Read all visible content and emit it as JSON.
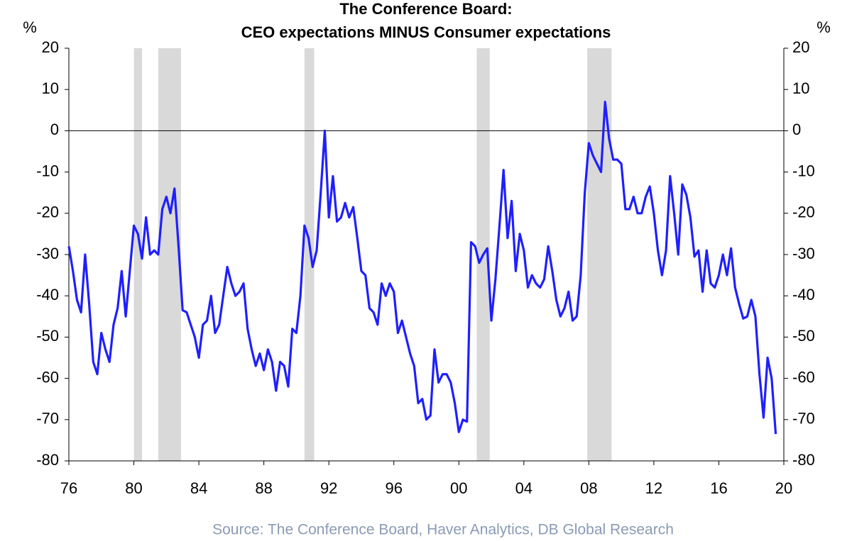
{
  "chart_data": {
    "type": "line",
    "title": "The Conference Board:",
    "subtitle": "CEO expectations MINUS Consumer expectations",
    "y_label": "%",
    "y2_label": "%",
    "source": "Source: The Conference Board, Haver Analytics, DB Global Research",
    "color": "#1f1fff",
    "shade_color": "#d9d9d9",
    "shaded_periods": [
      [
        1980.0,
        1980.5
      ],
      [
        1981.5,
        1982.9
      ],
      [
        1990.5,
        1991.1
      ],
      [
        2001.1,
        2001.9
      ],
      [
        2007.9,
        2009.4
      ]
    ],
    "x": [
      1976,
      1976.25,
      1976.5,
      1976.75,
      1977,
      1977.25,
      1977.5,
      1977.75,
      1978,
      1978.25,
      1978.5,
      1978.75,
      1979,
      1979.25,
      1979.5,
      1979.75,
      1980,
      1980.25,
      1980.5,
      1980.75,
      1981,
      1981.25,
      1981.5,
      1981.75,
      1982,
      1982.25,
      1982.5,
      1982.75,
      1983,
      1983.25,
      1983.5,
      1983.75,
      1984,
      1984.25,
      1984.5,
      1984.75,
      1985,
      1985.25,
      1985.5,
      1985.75,
      1986,
      1986.25,
      1986.5,
      1986.75,
      1987,
      1987.25,
      1987.5,
      1987.75,
      1988,
      1988.25,
      1988.5,
      1988.75,
      1989,
      1989.25,
      1989.5,
      1989.75,
      1990,
      1990.25,
      1990.5,
      1990.75,
      1991,
      1991.25,
      1991.5,
      1991.75,
      1992,
      1992.25,
      1992.5,
      1992.75,
      1993,
      1993.25,
      1993.5,
      1993.75,
      1994,
      1994.25,
      1994.5,
      1994.75,
      1995,
      1995.25,
      1995.5,
      1995.75,
      1996,
      1996.25,
      1996.5,
      1996.75,
      1997,
      1997.25,
      1997.5,
      1997.75,
      1998,
      1998.25,
      1998.5,
      1998.75,
      1999,
      1999.25,
      1999.5,
      1999.75,
      2000,
      2000.25,
      2000.5,
      2000.75,
      2001,
      2001.25,
      2001.5,
      2001.75,
      2002,
      2002.25,
      2002.5,
      2002.75,
      2003,
      2003.25,
      2003.5,
      2003.75,
      2004,
      2004.25,
      2004.5,
      2004.75,
      2005,
      2005.25,
      2005.5,
      2005.75,
      2006,
      2006.25,
      2006.5,
      2006.75,
      2007,
      2007.25,
      2007.5,
      2007.75,
      2008,
      2008.25,
      2008.5,
      2008.75,
      2009,
      2009.25,
      2009.5,
      2009.75,
      2010,
      2010.25,
      2010.5,
      2010.75,
      2011,
      2011.25,
      2011.5,
      2011.75,
      2012,
      2012.25,
      2012.5,
      2012.75,
      2013,
      2013.25,
      2013.5,
      2013.75,
      2014,
      2014.25,
      2014.5,
      2014.75,
      2015,
      2015.25,
      2015.5,
      2015.75,
      2016,
      2016.25,
      2016.5,
      2016.75,
      2017,
      2017.25,
      2017.5,
      2017.75,
      2018,
      2018.25,
      2018.5,
      2018.75,
      2019,
      2019.25,
      2019.5
    ],
    "values": [
      -28,
      -34,
      -41,
      -44,
      -30,
      -42,
      -56,
      -59,
      -49,
      -53,
      -56,
      -47,
      -43,
      -34,
      -45,
      -34,
      -23,
      -25,
      -31,
      -21,
      -30,
      -29,
      -30,
      -19,
      -16,
      -20,
      -14,
      -28,
      -43.5,
      -44,
      -47,
      -50,
      -55,
      -47,
      -46,
      -40,
      -49,
      -47,
      -40,
      -33,
      -37,
      -40,
      -39,
      -37,
      -48,
      -53,
      -57,
      -54,
      -58,
      -53,
      -56,
      -63,
      -56,
      -57,
      -62,
      -48,
      -49,
      -40,
      -23,
      -26,
      -33,
      -29,
      -15,
      0,
      -21,
      -11,
      -22,
      -21,
      -17.5,
      -21,
      -18.5,
      -26,
      -34,
      -35,
      -43,
      -44,
      -47,
      -37,
      -40,
      -37,
      -39,
      -49,
      -46,
      -50,
      -54,
      -57,
      -66,
      -65,
      -70,
      -69,
      -53,
      -61,
      -59,
      -59,
      -61,
      -66,
      -73,
      -70,
      -70.5,
      -27,
      -28,
      -32,
      -30,
      -28.5,
      -46,
      -36,
      -23,
      -9.5,
      -26,
      -17,
      -34,
      -25,
      -29,
      -38,
      -35,
      -37,
      -38,
      -36,
      -28,
      -34,
      -41,
      -45,
      -43,
      -39,
      -46,
      -45,
      -35,
      -15,
      -3,
      -6,
      -8,
      -10,
      7,
      -2,
      -7,
      -7,
      -8,
      -19,
      -19,
      -16,
      -20,
      -20,
      -16,
      -13.5,
      -20,
      -29,
      -35,
      -29,
      -11,
      -20,
      -30,
      -13,
      -15.5,
      -21,
      -30.5,
      -29,
      -39,
      -29,
      -37,
      -38,
      -35,
      -30,
      -35,
      -28.5,
      -38,
      -42,
      -45.5,
      -45,
      -41,
      -45,
      -59,
      -69.5,
      -55,
      -60,
      -73.5
    ],
    "xlim": [
      1976,
      2020
    ],
    "xticks": [
      {
        "value": 1976,
        "label": "76"
      },
      {
        "value": 1980,
        "label": "80"
      },
      {
        "value": 1984,
        "label": "84"
      },
      {
        "value": 1988,
        "label": "88"
      },
      {
        "value": 1992,
        "label": "92"
      },
      {
        "value": 1996,
        "label": "96"
      },
      {
        "value": 2000,
        "label": "00"
      },
      {
        "value": 2004,
        "label": "04"
      },
      {
        "value": 2008,
        "label": "08"
      },
      {
        "value": 2012,
        "label": "12"
      },
      {
        "value": 2016,
        "label": "16"
      },
      {
        "value": 2020,
        "label": "20"
      }
    ],
    "ylim": [
      -80,
      20
    ],
    "yticks": [
      -80,
      -70,
      -60,
      -50,
      -40,
      -30,
      -20,
      -10,
      0,
      10,
      20
    ],
    "y2lim": [
      -80,
      20
    ],
    "y2ticks": [
      -80,
      -70,
      -60,
      -50,
      -40,
      -30,
      -20,
      -10,
      0,
      10,
      20
    ],
    "zero_line": true
  }
}
